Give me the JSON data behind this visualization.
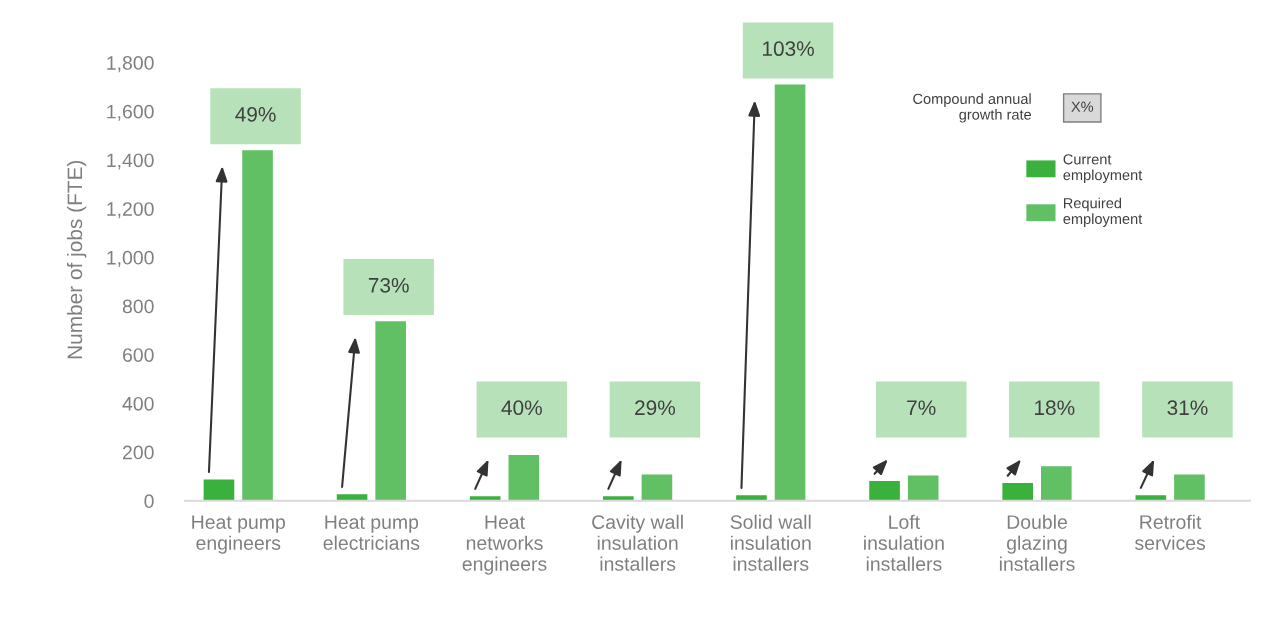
{
  "chart_data": {
    "type": "bar",
    "ylabel": "Number of jobs (FTE)",
    "categories": [
      "Heat pump\nengineers",
      "Heat pump\nelectricians",
      "Heat\nnetworks\nengineers",
      "Cavity wall\ninsulation\ninstallers",
      "Solid wall\ninsulation\ninstallers",
      "Loft\ninsulation\ninstallers",
      "Double\nglazing\ninstallers",
      "Retrofit\nservices"
    ],
    "series": [
      {
        "name": "Current\nemployment",
        "color": "#39b13c",
        "values": [
          88,
          27,
          19,
          19,
          23,
          81,
          73,
          23
        ]
      },
      {
        "name": "Required\nemployment",
        "color": "#61c064",
        "values": [
          1440,
          738,
          188,
          108,
          1710,
          104,
          142,
          108
        ]
      }
    ],
    "ylim": [
      0,
      1980
    ],
    "yticks": [
      {
        "value": 0,
        "label": "0"
      },
      {
        "value": 200,
        "label": "200"
      },
      {
        "value": 400,
        "label": "400"
      },
      {
        "value": 600,
        "label": "600"
      },
      {
        "value": 800,
        "label": "800"
      },
      {
        "value": 1000,
        "label": "1,000"
      },
      {
        "value": 1200,
        "label": "1,200"
      },
      {
        "value": 1400,
        "label": "1,400"
      },
      {
        "value": 1600,
        "label": "1,600"
      },
      {
        "value": 1800,
        "label": "1,800"
      }
    ],
    "annotations": [
      "49%",
      "73%",
      "40%",
      "29%",
      "103%",
      "7%",
      "18%",
      "31%",
      "Compound annual\ngrowth rate",
      "X%"
    ],
    "legend": "right",
    "grid": false
  }
}
